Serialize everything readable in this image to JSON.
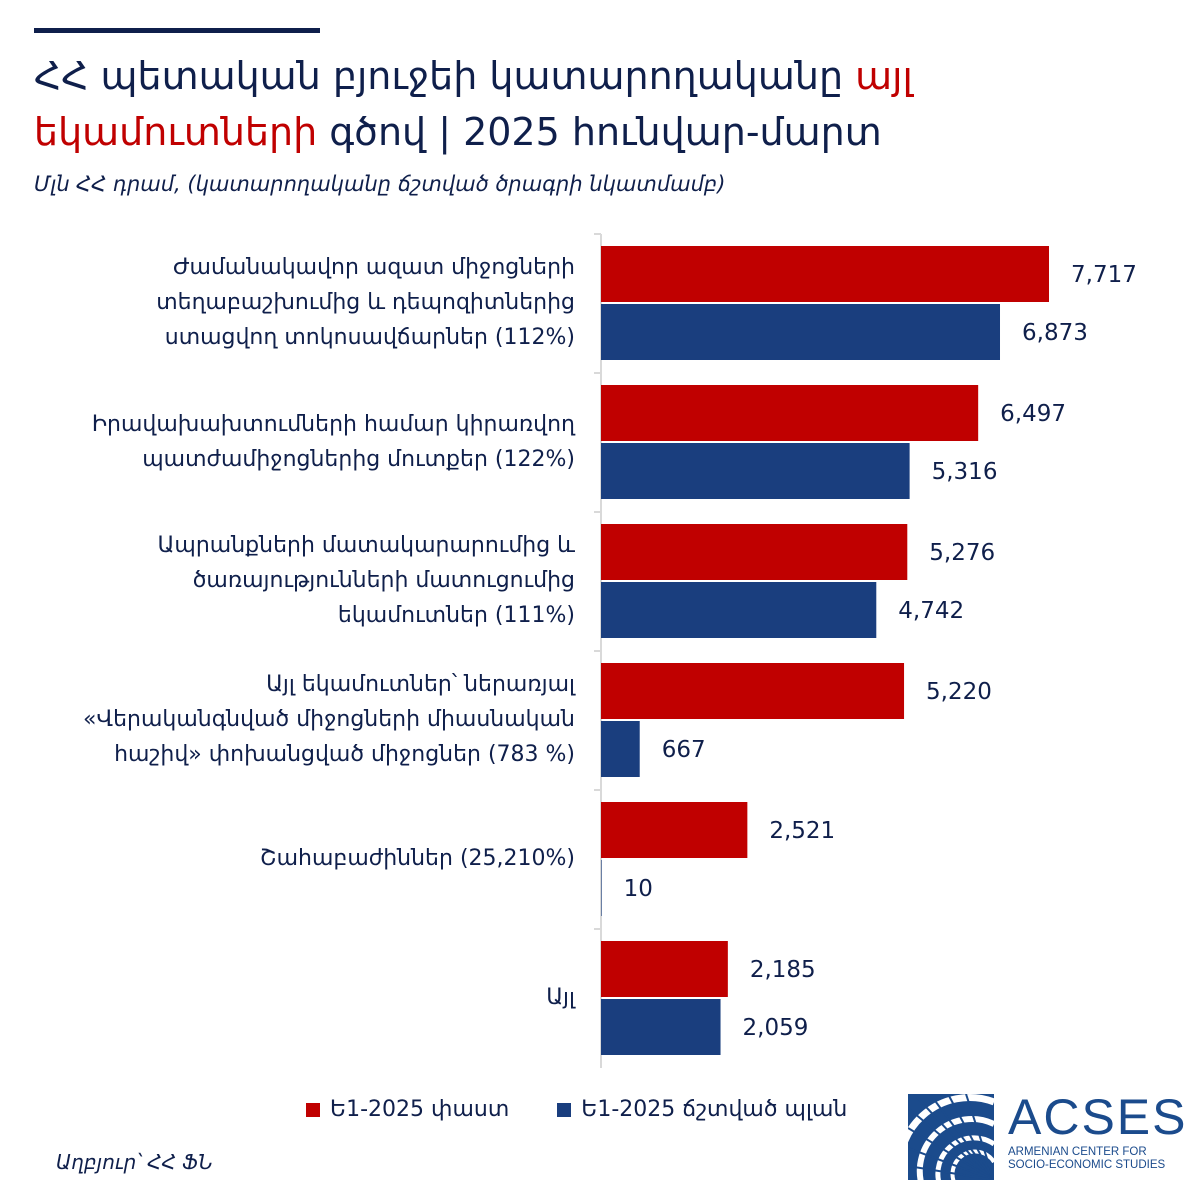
{
  "header": {
    "title_part1": "ՀՀ պետական բյուջեի կատարողականը",
    "title_highlight": "այլ եկամուտների",
    "title_part2": "գծով | 2025 հունվար-մարտ",
    "subtitle": "Մլն ՀՀ դրամ, (կատարողականը ճշտված ծրագրի նկատմամբ)"
  },
  "colors": {
    "actual": "#c00000",
    "plan": "#1a3e7e",
    "text": "#0f1f4b",
    "axis": "#d9d9d9"
  },
  "chart_data": {
    "type": "bar",
    "orientation": "horizontal",
    "categories": [
      "Ժամանակավոր ազատ միջոցների տեղաբաշխումից և դեպոզիտներից ստացվող տոկոսավճարներ (112%)",
      "Իրավախախտումների համար կիրառվող պատժամիջոցներից մուտքեր (122%)",
      "Ապրանքների մատակարարումից և ծառայությունների մատուցումից եկամուտներ (111%)",
      "Այլ եկամուտներ՝ ներառյալ «Վերականգնված միջոցների միասնական հաշիվ» փոխանցված միջոցներ (783 %)",
      "Շահաբաժիններ (25,210%)",
      "Այլ"
    ],
    "category_lines": [
      [
        "Ժամանակավոր ազատ միջոցների",
        "տեղաբաշխումից և դեպոզիտներից",
        "ստացվող տոկոսավճարներ (112%)"
      ],
      [
        "Իրավախախտումների համար կիրառվող",
        "պատժամիջոցներից մուտքեր (122%)"
      ],
      [
        "Ապրանքների մատակարարումից և",
        "ծառայությունների մատուցումից",
        "եկամուտներ (111%)"
      ],
      [
        "Այլ եկամուտներ՝ ներառյալ",
        "«Վերականգնված միջոցների միասնական",
        "հաշիվ» փոխանցված միջոցներ (783 %)"
      ],
      [
        "Շահաբաժիններ (25,210%)"
      ],
      [
        "Այլ"
      ]
    ],
    "series": [
      {
        "name": "Ե1-2025 փաստ",
        "values": [
          7717,
          6497,
          5276,
          5220,
          2521,
          2185
        ],
        "labels": [
          "7,717",
          "6,497",
          "5,276",
          "5,220",
          "2,521",
          "2,185"
        ]
      },
      {
        "name": "Ե1-2025 ճշտված պլան",
        "values": [
          6873,
          5316,
          4742,
          667,
          10,
          2059
        ],
        "labels": [
          "6,873",
          "5,316",
          "4,742",
          "667",
          "10",
          "2,059"
        ]
      }
    ],
    "xlim": [
      0,
      8200
    ],
    "grid": false,
    "legend_position": "bottom"
  },
  "source": "Աղբյուր՝ ՀՀ ՖՆ",
  "logo": {
    "word": "ACSES",
    "sub_line1": "ARMENIAN CENTER FOR",
    "sub_line2": "SOCIO-ECONOMIC STUDIES"
  }
}
